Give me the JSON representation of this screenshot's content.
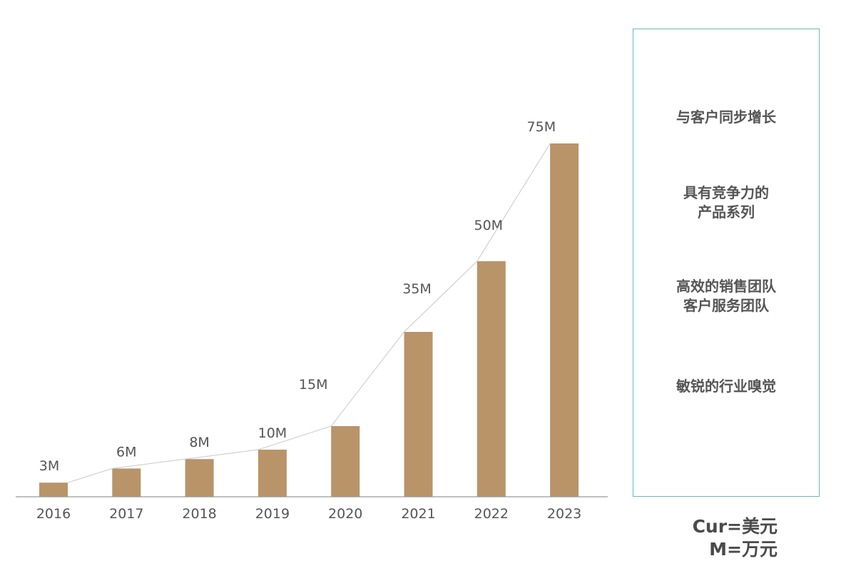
{
  "chart_data": {
    "type": "bar",
    "categories": [
      "2016",
      "2017",
      "2018",
      "2019",
      "2020",
      "2021",
      "2022",
      "2023"
    ],
    "values": [
      3,
      6,
      8,
      10,
      15,
      35,
      50,
      75
    ],
    "data_labels": [
      "3M",
      "6M",
      "8M",
      "10M",
      "15M",
      "35M",
      "50M",
      "75M"
    ],
    "ylim": [
      0,
      80
    ],
    "grid": false,
    "trend_line": true,
    "colors": {
      "bar": "#b99469",
      "trend_line": "#c9c9c9",
      "axis": "#999999"
    }
  },
  "panel": {
    "items": [
      "与客户同步增长",
      "具有竞争力的\n产品系列",
      "高效的销售团队\n客户服务团队",
      "敏锐的行业嗅觉"
    ],
    "border_color": "#6bb8b5"
  },
  "note": {
    "currency": "Cur=美元",
    "unit": "M=万元"
  }
}
